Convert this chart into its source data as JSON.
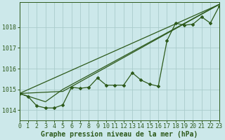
{
  "bg_color": "#cce8ea",
  "grid_color": "#aacccc",
  "line_color": "#2d5a1b",
  "x_min": 0,
  "x_max": 23,
  "y_min": 1013.5,
  "y_max": 1019.2,
  "yticks": [
    1014,
    1015,
    1016,
    1017,
    1018
  ],
  "xticks": [
    0,
    1,
    2,
    3,
    4,
    5,
    6,
    7,
    8,
    9,
    10,
    11,
    12,
    13,
    14,
    15,
    16,
    17,
    18,
    19,
    20,
    21,
    22,
    23
  ],
  "xlabel": "Graphe pression niveau de la mer (hPa)",
  "tick_fontsize": 6,
  "label_fontsize": 7,
  "main_x": [
    0,
    1,
    2,
    3,
    4,
    5,
    6,
    7,
    8,
    9,
    10,
    11,
    12,
    13,
    14,
    15,
    16,
    17,
    18,
    19,
    20,
    21,
    22,
    23
  ],
  "main_y": [
    1014.8,
    1014.65,
    1014.2,
    1014.1,
    1014.1,
    1014.25,
    1015.1,
    1015.05,
    1015.1,
    1015.55,
    1015.2,
    1015.2,
    1015.2,
    1015.8,
    1015.45,
    1015.25,
    1015.15,
    1017.35,
    1018.2,
    1018.1,
    1018.15,
    1018.5,
    1018.2,
    1019.0
  ],
  "trend1_x": [
    0,
    23
  ],
  "trend1_y": [
    1014.8,
    1019.1
  ],
  "trend2_x": [
    0,
    5,
    23
  ],
  "trend2_y": [
    1014.8,
    1014.9,
    1019.1
  ],
  "trend3_x": [
    0,
    3,
    5,
    23
  ],
  "trend3_y": [
    1014.8,
    1014.4,
    1015.0,
    1019.1
  ]
}
